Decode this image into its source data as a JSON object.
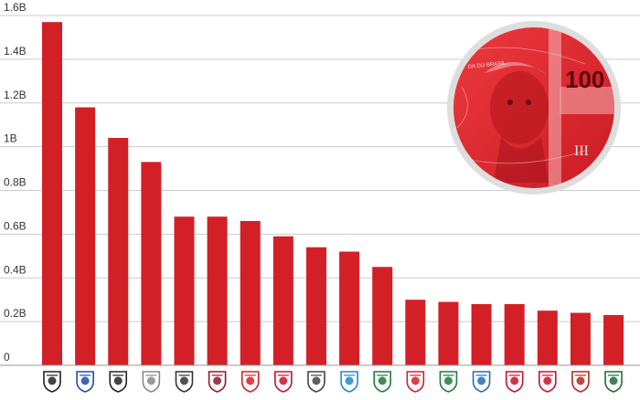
{
  "chart_data": {
    "type": "bar",
    "ylim": [
      0,
      1.6
    ],
    "y_ticks": [
      {
        "value": 0,
        "label": "0"
      },
      {
        "value": 0.2,
        "label": "0.2B"
      },
      {
        "value": 0.4,
        "label": "0.4B"
      },
      {
        "value": 0.6,
        "label": "0.6B"
      },
      {
        "value": 0.8,
        "label": "0.8B"
      },
      {
        "value": 1.0,
        "label": "1B"
      },
      {
        "value": 1.2,
        "label": "1.2B"
      },
      {
        "value": 1.4,
        "label": "1.4B"
      },
      {
        "value": 1.6,
        "label": "1.6B"
      }
    ],
    "grid": true,
    "bar_color": "#d32027",
    "grid_color": "#cccccc",
    "values": [
      1.57,
      1.18,
      1.04,
      0.93,
      0.68,
      0.68,
      0.66,
      0.59,
      0.54,
      0.52,
      0.45,
      0.3,
      0.29,
      0.28,
      0.28,
      0.25,
      0.24,
      0.23
    ],
    "categories": [
      {
        "icon": "club-crest-icon",
        "color": "#222222"
      },
      {
        "icon": "club-crest-icon",
        "color": "#1f4fa3"
      },
      {
        "icon": "club-crest-icon",
        "color": "#222222"
      },
      {
        "icon": "club-crest-icon",
        "color": "#888888"
      },
      {
        "icon": "club-crest-icon",
        "color": "#333333"
      },
      {
        "icon": "club-crest-icon",
        "color": "#8b1c2c"
      },
      {
        "icon": "club-crest-icon",
        "color": "#d32027"
      },
      {
        "icon": "club-crest-icon",
        "color": "#c8102e"
      },
      {
        "icon": "club-crest-icon",
        "color": "#444444"
      },
      {
        "icon": "club-crest-icon",
        "color": "#1e88c7"
      },
      {
        "icon": "club-crest-icon",
        "color": "#1b7d3a"
      },
      {
        "icon": "club-crest-icon",
        "color": "#d32027"
      },
      {
        "icon": "club-crest-icon",
        "color": "#1b7d3a"
      },
      {
        "icon": "club-crest-icon",
        "color": "#1e6fb8"
      },
      {
        "icon": "club-crest-icon",
        "color": "#c8102e"
      },
      {
        "icon": "club-crest-icon",
        "color": "#c8102e"
      },
      {
        "icon": "club-crest-icon",
        "color": "#b5261e"
      },
      {
        "icon": "club-crest-icon",
        "color": "#1b6e3a"
      }
    ]
  },
  "inset_image": {
    "icon": "brazilian-100-real-banknote-image",
    "tint_color": "#e0262c",
    "border_color": "#dedede",
    "note_text": "100",
    "roman_numeral": "III",
    "small_text": "DA DO BRASIL"
  }
}
